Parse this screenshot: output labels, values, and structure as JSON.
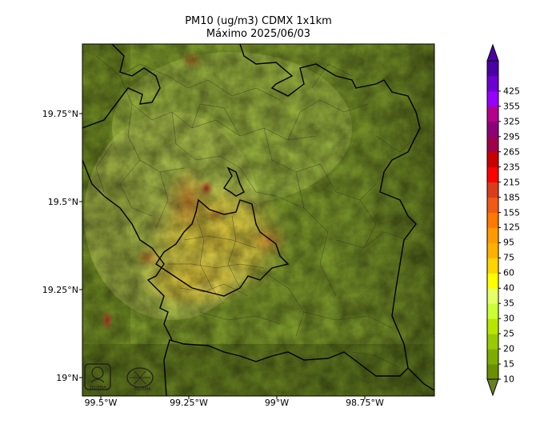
{
  "title": {
    "line1": "PM10 (ug/m3) CDMX 1x1km",
    "line2": "Máximo 2025/06/03"
  },
  "axes": {
    "lat_ticks": [
      "19.75°N",
      "19.5°N",
      "19.25°N",
      "19°N"
    ],
    "lon_ticks": [
      "99.5°W",
      "99.25°W",
      "99°W",
      "98.75°W"
    ]
  },
  "colorbar": {
    "levels": [
      "10",
      "15",
      "20",
      "25",
      "30",
      "35",
      "40",
      "60",
      "75",
      "95",
      "125",
      "155",
      "185",
      "215",
      "235",
      "265",
      "295",
      "325",
      "355",
      "425"
    ],
    "colors": [
      "#6a8f00",
      "#7fac00",
      "#99cc00",
      "#b8e600",
      "#ccff33",
      "#e6ff66",
      "#ffff00",
      "#ffd400",
      "#ffb000",
      "#ff9a00",
      "#ff7800",
      "#f05a14",
      "#dc3c1e",
      "#ff0000",
      "#c80000",
      "#a0004b",
      "#8c0078",
      "#b4008c",
      "#9600ff",
      "#6e00d2",
      "#4b00a5"
    ]
  },
  "logos": {
    "left": "SEDEMA",
    "right": "SEDEMA"
  },
  "colors": {
    "terrain_dark": "#4d5e16",
    "terrain_mid": "#758f2a",
    "terrain_light": "#9eb845",
    "pollution_yellow": "#d8c434",
    "pollution_orange": "#c98a2c",
    "hotspot_red": "#c23c2a",
    "boundary": "#000000"
  }
}
